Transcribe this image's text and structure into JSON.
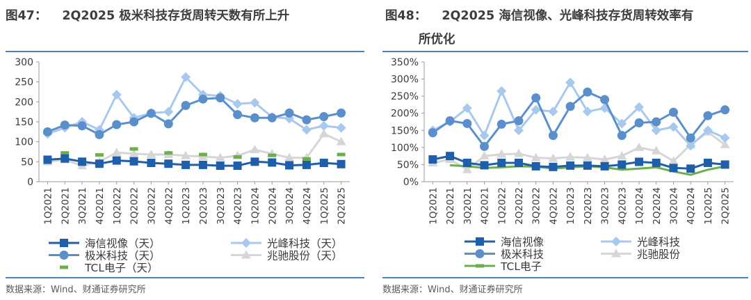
{
  "charts": [
    {
      "figure_no": "图47：",
      "title": "2Q2025 极米科技存货周转天数有所上升",
      "source": "数据来源：Wind、财通证券研究所"
    },
    {
      "figure_no": "图48：",
      "title_line1": "2Q2025 海信视像、光峰科技存货周转效率有",
      "title_line2": "所优化",
      "source": "数据来源：Wind、财通证券研究所"
    }
  ],
  "colors": {
    "hisense": "#1f5faa",
    "appotronics": "#a9c8ee",
    "xgimi": "#5a8fcc",
    "tcl": "#6ab04c",
    "zhaochi": "#d6d6d6",
    "rule": "#4a7fc1"
  },
  "chart_data": [
    {
      "type": "line",
      "title": "2Q2025 极米科技存货周转天数有所上升",
      "categories": [
        "1Q2021",
        "2Q2021",
        "3Q2021",
        "4Q2021",
        "1Q2022",
        "2Q2022",
        "3Q2022",
        "4Q2022",
        "1Q2023",
        "2Q2023",
        "3Q2023",
        "4Q2023",
        "1Q2024",
        "2Q2024",
        "3Q2024",
        "4Q2024",
        "1Q2025",
        "2Q2025"
      ],
      "ylim": [
        0,
        300
      ],
      "yticks": [
        "0",
        "50",
        "100",
        "150",
        "200",
        "250",
        "300"
      ],
      "legend": [
        "海信视像（天）",
        "光峰科技（天）",
        "极米科技（天）",
        "兆驰股份（天）",
        "TCL电子（天）"
      ],
      "series": [
        {
          "name": "海信视像（天）",
          "values": [
            55,
            58,
            50,
            45,
            53,
            51,
            47,
            45,
            42,
            42,
            40,
            40,
            50,
            48,
            41,
            42,
            47,
            44
          ]
        },
        {
          "name": "光峰科技（天）",
          "values": [
            120,
            135,
            150,
            130,
            218,
            160,
            172,
            175,
            262,
            218,
            215,
            195,
            198,
            162,
            158,
            130,
            140,
            135
          ]
        },
        {
          "name": "极米科技（天）",
          "values": [
            125,
            142,
            140,
            118,
            143,
            150,
            171,
            145,
            191,
            207,
            210,
            168,
            160,
            160,
            172,
            155,
            163,
            172
          ]
        },
        {
          "name": "兆驰股份（天）",
          "values": [
            50,
            55,
            40,
            50,
            73,
            70,
            68,
            68,
            65,
            63,
            60,
            65,
            80,
            70,
            60,
            60,
            120,
            100
          ]
        },
        {
          "name": "TCL电子（天）",
          "values": [
            null,
            72,
            null,
            67,
            null,
            82,
            null,
            72,
            null,
            68,
            null,
            62,
            null,
            66,
            null,
            57,
            null,
            68
          ]
        }
      ]
    },
    {
      "type": "line",
      "title": "2Q2025 海信视像、光峰科技存货周转效率有所优化",
      "categories": [
        "1Q2021",
        "2Q2021",
        "3Q2021",
        "4Q2021",
        "1Q2022",
        "2Q2022",
        "3Q2022",
        "4Q2022",
        "1Q2023",
        "2Q2023",
        "3Q2023",
        "4Q2023",
        "1Q2024",
        "2Q2024",
        "3Q2024",
        "4Q2024",
        "1Q2025",
        "2Q2025"
      ],
      "ylim": [
        0,
        350
      ],
      "yticks": [
        "0%",
        "50%",
        "100%",
        "150%",
        "200%",
        "250%",
        "300%",
        "350%"
      ],
      "legend": [
        "海信视像",
        "光峰科技",
        "极米科技",
        "兆驰股份",
        "TCL电子"
      ],
      "series": [
        {
          "name": "海信视像",
          "values": [
            65,
            75,
            55,
            48,
            55,
            55,
            45,
            43,
            47,
            47,
            45,
            50,
            58,
            55,
            40,
            38,
            55,
            50
          ]
        },
        {
          "name": "光峰科技",
          "values": [
            150,
            175,
            215,
            135,
            265,
            150,
            210,
            205,
            290,
            205,
            215,
            170,
            218,
            150,
            160,
            105,
            150,
            128
          ]
        },
        {
          "name": "极米科技",
          "values": [
            143,
            178,
            170,
            103,
            168,
            178,
            245,
            135,
            220,
            262,
            240,
            135,
            172,
            175,
            203,
            128,
            193,
            210
          ]
        },
        {
          "name": "兆驰股份",
          "values": [
            55,
            65,
            35,
            75,
            80,
            82,
            70,
            68,
            72,
            70,
            65,
            75,
            100,
            90,
            60,
            108,
            145,
            108
          ]
        },
        {
          "name": "TCL电子",
          "values": [
            null,
            48,
            45,
            40,
            42,
            45,
            44,
            38,
            42,
            45,
            42,
            35,
            38,
            42,
            30,
            20,
            35,
            45
          ]
        }
      ]
    }
  ]
}
